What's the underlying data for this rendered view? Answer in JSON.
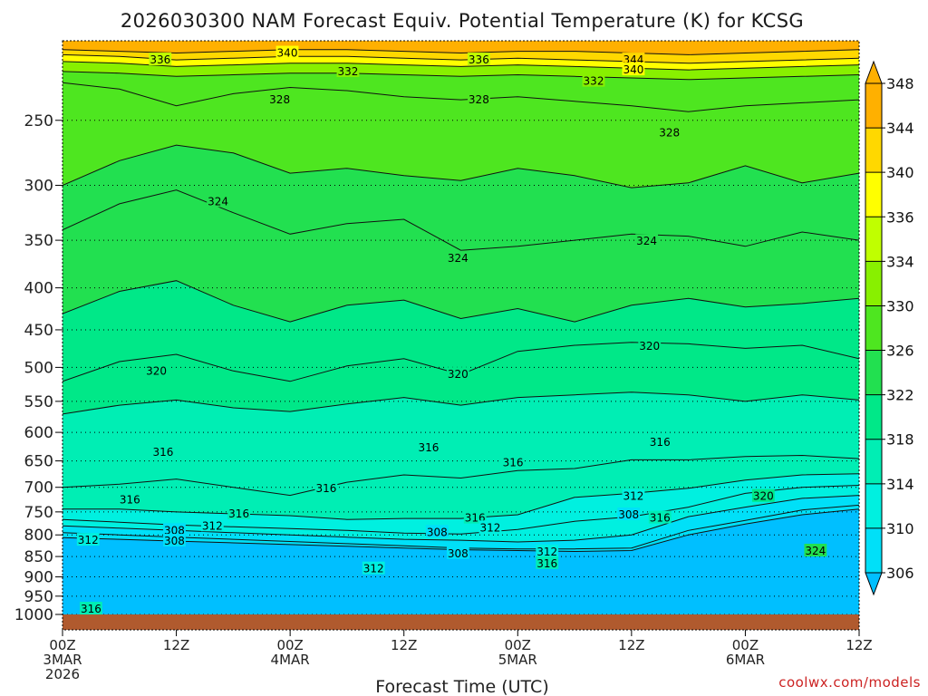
{
  "chart_data": {
    "type": "heatmap",
    "title": "2026030300 NAM Forecast Equiv. Potential Temperature (K) for KCSG",
    "xlabel": "Forecast Time (UTC)",
    "ylabel": "",
    "credit": "coolwx.com/models",
    "x_ticks": [
      {
        "hour": 0,
        "lines": [
          "00Z",
          "3MAR",
          "2026"
        ]
      },
      {
        "hour": 12,
        "lines": [
          "12Z"
        ]
      },
      {
        "hour": 24,
        "lines": [
          "00Z",
          "4MAR"
        ]
      },
      {
        "hour": 36,
        "lines": [
          "12Z"
        ]
      },
      {
        "hour": 48,
        "lines": [
          "00Z",
          "5MAR"
        ]
      },
      {
        "hour": 60,
        "lines": [
          "12Z"
        ]
      },
      {
        "hour": 72,
        "lines": [
          "00Z",
          "6MAR"
        ]
      },
      {
        "hour": 84,
        "lines": [
          "12Z"
        ]
      }
    ],
    "xlim": [
      0,
      84
    ],
    "y_ticks": [
      250,
      300,
      350,
      400,
      450,
      500,
      550,
      600,
      650,
      700,
      750,
      800,
      850,
      900,
      950,
      1000
    ],
    "ylim": [
      1000,
      200
    ],
    "y_scale": "log",
    "grid": "dotted horizontal at pressure levels",
    "colorbar": {
      "ticks": [
        306,
        310,
        314,
        318,
        322,
        326,
        330,
        334,
        336,
        340,
        344,
        348
      ],
      "colors": [
        "#00bfff",
        "#00e0f8",
        "#00f0e0",
        "#00eeb4",
        "#00e888",
        "#22e050",
        "#4ee620",
        "#88f000",
        "#c0ff00",
        "#ffff00",
        "#ffd800",
        "#ffb000"
      ],
      "extend": "both",
      "position": "right"
    },
    "ground_color": "#b05a2e",
    "ground_pressure": 1000,
    "contour_labels": [
      {
        "hour": 10.3,
        "p": 211,
        "text": "336"
      },
      {
        "hour": 23.7,
        "p": 207,
        "text": "340"
      },
      {
        "hour": 30.1,
        "p": 218,
        "text": "332"
      },
      {
        "hour": 43.9,
        "p": 211,
        "text": "336"
      },
      {
        "hour": 56.0,
        "p": 224,
        "text": "332"
      },
      {
        "hour": 60.2,
        "p": 211,
        "text": "344"
      },
      {
        "hour": 60.2,
        "p": 217,
        "text": "340"
      },
      {
        "hour": 22.9,
        "p": 236,
        "text": "328"
      },
      {
        "hour": 43.9,
        "p": 236,
        "text": "328"
      },
      {
        "hour": 64.0,
        "p": 259,
        "text": "328"
      },
      {
        "hour": 16.4,
        "p": 314,
        "text": "324"
      },
      {
        "hour": 41.7,
        "p": 368,
        "text": "324"
      },
      {
        "hour": 61.6,
        "p": 351,
        "text": "324"
      },
      {
        "hour": 9.9,
        "p": 505,
        "text": "320"
      },
      {
        "hour": 41.7,
        "p": 510,
        "text": "320"
      },
      {
        "hour": 61.9,
        "p": 471,
        "text": "320"
      },
      {
        "hour": 10.6,
        "p": 634,
        "text": "316"
      },
      {
        "hour": 38.6,
        "p": 626,
        "text": "316"
      },
      {
        "hour": 47.5,
        "p": 653,
        "text": "316"
      },
      {
        "hour": 63.0,
        "p": 617,
        "text": "316"
      },
      {
        "hour": 7.1,
        "p": 725,
        "text": "316"
      },
      {
        "hour": 27.8,
        "p": 702,
        "text": "316"
      },
      {
        "hour": 18.6,
        "p": 754,
        "text": "316"
      },
      {
        "hour": 15.8,
        "p": 780,
        "text": "312"
      },
      {
        "hour": 11.8,
        "p": 790,
        "text": "308"
      },
      {
        "hour": 11.8,
        "p": 814,
        "text": "308"
      },
      {
        "hour": 2.7,
        "p": 812,
        "text": "312"
      },
      {
        "hour": 43.5,
        "p": 763,
        "text": "316"
      },
      {
        "hour": 45.1,
        "p": 784,
        "text": "312"
      },
      {
        "hour": 39.5,
        "p": 794,
        "text": "308"
      },
      {
        "hour": 41.7,
        "p": 843,
        "text": "308"
      },
      {
        "hour": 32.8,
        "p": 880,
        "text": "312"
      },
      {
        "hour": 51.1,
        "p": 839,
        "text": "312"
      },
      {
        "hour": 51.1,
        "p": 867,
        "text": "316"
      },
      {
        "hour": 60.2,
        "p": 718,
        "text": "312"
      },
      {
        "hour": 59.7,
        "p": 756,
        "text": "308"
      },
      {
        "hour": 63.0,
        "p": 763,
        "text": "316"
      },
      {
        "hour": 73.9,
        "p": 718,
        "text": "320"
      },
      {
        "hour": 79.4,
        "p": 837,
        "text": "324"
      },
      {
        "hour": 3.0,
        "p": 985,
        "text": "316"
      }
    ],
    "isotherms": [
      {
        "value": 344,
        "p": [
          205,
          206,
          207,
          206,
          205,
          205,
          206,
          207,
          206,
          206,
          207,
          208,
          207,
          206,
          205
        ]
      },
      {
        "value": 340,
        "p": [
          208,
          209,
          211,
          210,
          209,
          209,
          210,
          211,
          210,
          211,
          212,
          213,
          212,
          211,
          210
        ]
      },
      {
        "value": 336,
        "p": [
          212,
          213,
          215,
          214,
          213,
          213,
          214,
          215,
          214,
          215,
          216,
          217,
          216,
          215,
          214
        ]
      },
      {
        "value": 332,
        "p": [
          218,
          219,
          221,
          220,
          219,
          219,
          220,
          221,
          220,
          221,
          222,
          223,
          222,
          221,
          220
        ]
      },
      {
        "value": 328,
        "p": [
          225,
          229,
          240,
          232,
          228,
          230,
          234,
          236,
          234,
          237,
          240,
          244,
          240,
          238,
          236
        ]
      },
      {
        "value": 326,
        "p": [
          300,
          280,
          268,
          274,
          290,
          286,
          292,
          296,
          286,
          292,
          302,
          298,
          284,
          298,
          290
        ]
      },
      {
        "value": 324,
        "p": [
          340,
          316,
          304,
          324,
          344,
          334,
          330,
          360,
          356,
          350,
          344,
          346,
          356,
          342,
          350
        ]
      },
      {
        "value": 322,
        "p": [
          430,
          404,
          392,
          420,
          440,
          420,
          414,
          436,
          424,
          440,
          420,
          412,
          422,
          418,
          412
        ]
      },
      {
        "value": 320,
        "p": [
          520,
          492,
          482,
          505,
          520,
          498,
          488,
          510,
          478,
          470,
          466,
          468,
          474,
          470,
          488
        ]
      },
      {
        "value": 318,
        "p": [
          570,
          556,
          548,
          560,
          566,
          554,
          544,
          556,
          544,
          540,
          536,
          540,
          550,
          540,
          548
        ]
      },
      {
        "value": 316,
        "p": [
          700,
          694,
          684,
          700,
          716,
          690,
          676,
          682,
          668,
          664,
          648,
          648,
          642,
          640,
          646
        ]
      },
      {
        "value": 314,
        "p": [
          744,
          744,
          750,
          754,
          758,
          766,
          764,
          764,
          756,
          720,
          712,
          702,
          686,
          676,
          674
        ]
      },
      {
        "value": 312,
        "p": [
          766,
          772,
          778,
          782,
          786,
          790,
          796,
          798,
          788,
          770,
          760,
          740,
          712,
          700,
          696
        ]
      },
      {
        "value": 310,
        "p": [
          780,
          785,
          790,
          795,
          800,
          805,
          810,
          812,
          816,
          812,
          800,
          760,
          740,
          722,
          716
        ]
      },
      {
        "value": 308,
        "p": [
          795,
          800,
          805,
          810,
          815,
          820,
          825,
          830,
          832,
          832,
          830,
          790,
          768,
          746,
          736
        ]
      },
      {
        "value": 306,
        "p": [
          806,
          810,
          814,
          818,
          822,
          826,
          830,
          834,
          836,
          838,
          836,
          800,
          776,
          756,
          744
        ]
      }
    ]
  }
}
